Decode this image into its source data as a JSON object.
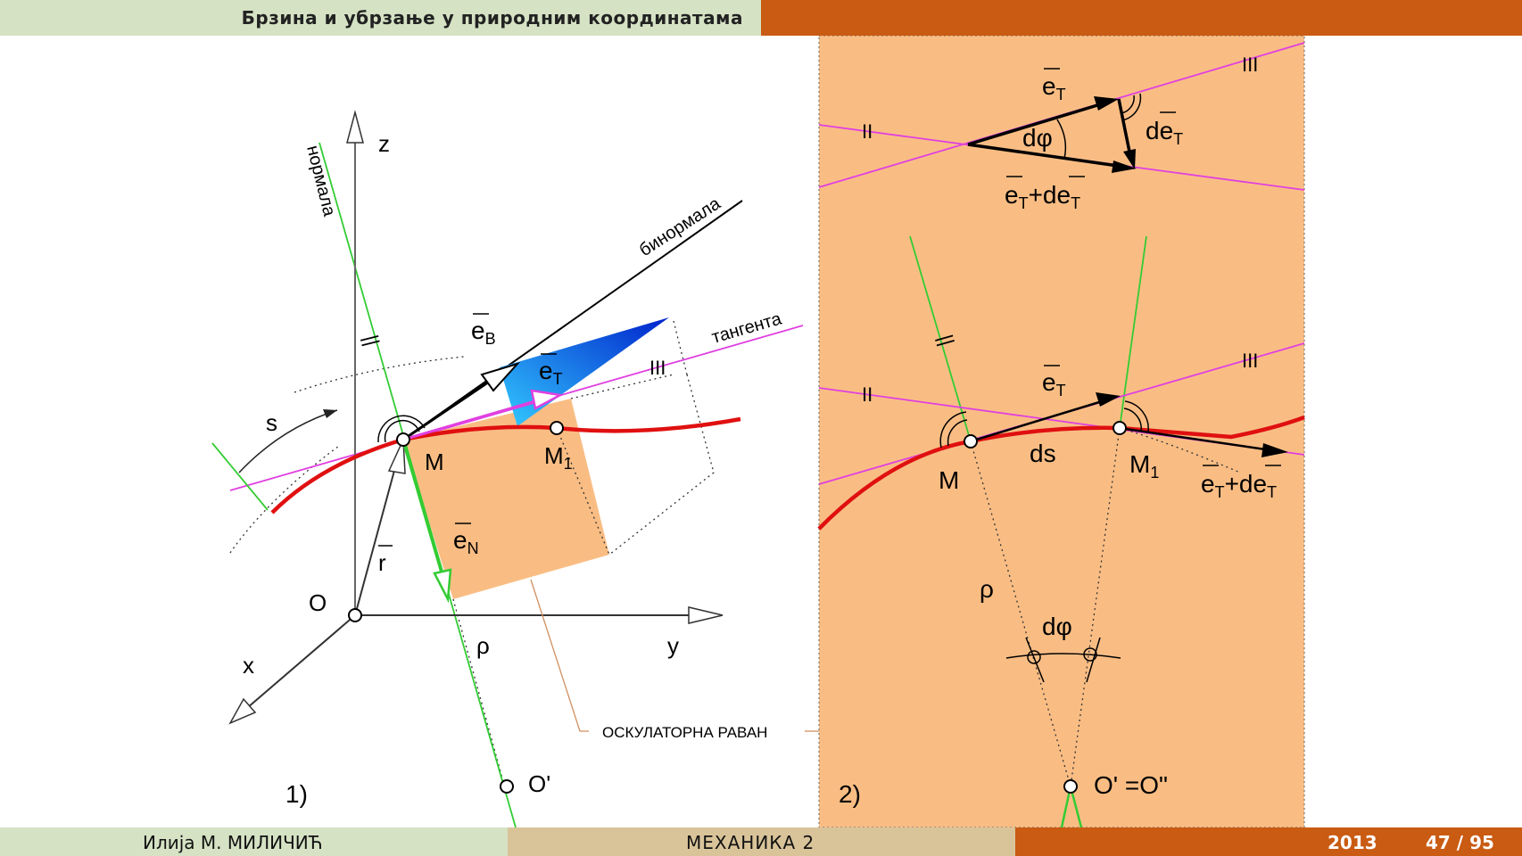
{
  "header": {
    "title": "Брзина и убрзање у природним координатама"
  },
  "footer": {
    "author": "Илија М. МИЛИЧИЋ",
    "course": "МЕХАНИКА 2",
    "year": "2013",
    "page": "47 / 95"
  },
  "figure1": {
    "tag": "1)",
    "labels": {
      "z": "z",
      "y": "y",
      "x": "x",
      "O": "O",
      "O_prime": "O'",
      "M": "M",
      "M1": "M",
      "M1_sub": "1",
      "s": "s",
      "r": "r",
      "rho": "ρ",
      "eB": "e",
      "eB_sub": "B",
      "eT": "e",
      "eT_sub": "T",
      "eN": "e",
      "eN_sub": "N",
      "normala": "нормала",
      "binormala": "бинормала",
      "tangenta": "тангента",
      "oskulatorna": "ОСКУЛАТОРНА  РАВАН",
      "mark3": "III",
      "mark1": "II",
      "mark2": "||"
    }
  },
  "figure2": {
    "tag": "2)",
    "labels": {
      "M": "M",
      "M1": "M",
      "M1_sub": "1",
      "ds": "ds",
      "rho": "ρ",
      "dphi": "dφ",
      "dphi_top": "dφ",
      "O_eq": "O' =O\"",
      "eT_top": "e",
      "eT_top_sub": "T",
      "deT": "de",
      "deT_sub": "T",
      "sum_e": "e",
      "sum_sub1": "T",
      "sum_plus": "+de",
      "sum_sub2": "T",
      "eT_mid": "e",
      "eT_mid_sub": "T",
      "sum2_e": "e",
      "sum2_sub1": "T",
      "sum2_plus": "+de",
      "sum2_sub2": "T",
      "mark2": "II",
      "mark3": "III",
      "mark_green": "||"
    }
  },
  "colors": {
    "header_left": "#d5e2c4",
    "header_right": "#c95b12",
    "panel": "#f9bd84",
    "curve": "#e01010",
    "tangent": "#e040e0",
    "normal": "#33cc33",
    "footer_mid": "#d9c49a"
  }
}
